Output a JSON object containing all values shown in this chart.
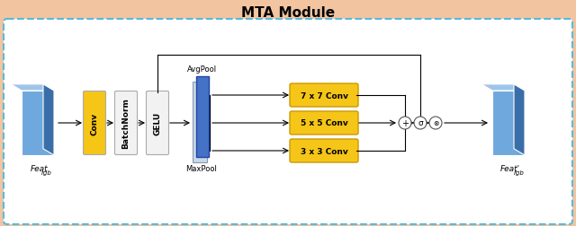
{
  "title": "MTA Module",
  "bg_color": "#F2C4A0",
  "inner_bg": "#FFFFFF",
  "box_color_yellow": "#F5C518",
  "box_color_white": "#F2F2F2",
  "box_color_blue_dark": "#4472C4",
  "box_color_blue_light": "#A8C8E8",
  "cube_face_front": "#6FA8DC",
  "cube_face_top": "#9EC5E8",
  "cube_face_side": "#3A6EA8",
  "dashed_border": "#55BBDD",
  "labels": {
    "conv": "Conv",
    "batchnorm": "BatchNorm",
    "gelu": "GELU",
    "avgpool": "AvgPool",
    "maxpool": "MaxPool",
    "conv77": "7 x 7 Conv",
    "conv55": "5 x 5 Conv",
    "conv33": "3 x 3 Conv",
    "input": "Feat",
    "input_sub": "rgb",
    "output": "Feat'",
    "output_sub": "rgb"
  },
  "figw": 6.4,
  "figh": 2.53
}
